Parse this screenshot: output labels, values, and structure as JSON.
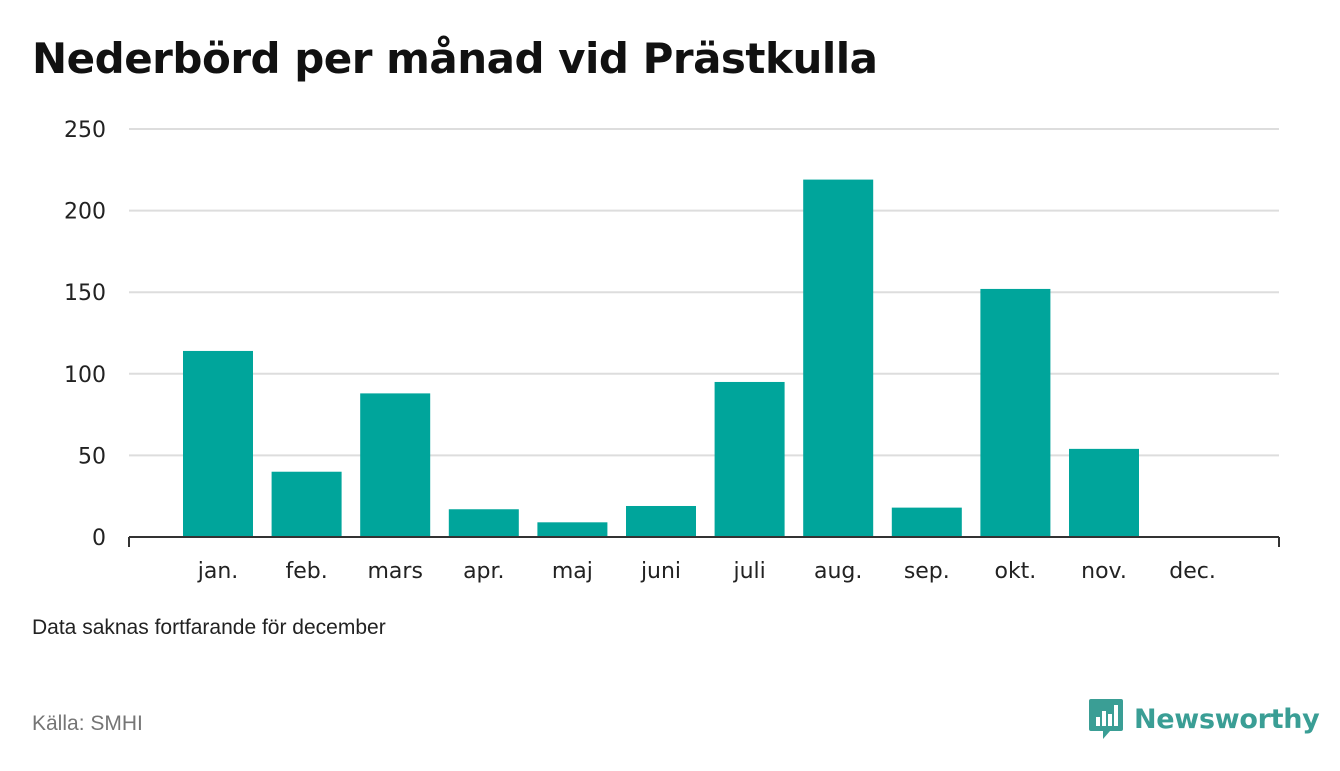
{
  "title": "Nederbörd per månad vid Prästkulla",
  "note": "Data saknas fortfarande för december",
  "source": "Källa: SMHI",
  "brand": {
    "name": "Newsworthy",
    "icon": "newsworthy-logo-icon",
    "color": "#3a9e95"
  },
  "chart_data": {
    "type": "bar",
    "categories": [
      "jan.",
      "feb.",
      "mars",
      "apr.",
      "maj",
      "juni",
      "juli",
      "aug.",
      "sep.",
      "okt.",
      "nov.",
      "dec."
    ],
    "values": [
      114,
      40,
      88,
      17,
      9,
      19,
      95,
      219,
      18,
      152,
      54,
      null
    ],
    "ylim": [
      0,
      250
    ],
    "yticks": [
      0,
      50,
      100,
      150,
      200,
      250
    ],
    "xlabel": "",
    "ylabel": "",
    "grid": true,
    "bar_color": "#00a59b",
    "grid_color": "#dddddd",
    "axis_color": "#333333"
  }
}
